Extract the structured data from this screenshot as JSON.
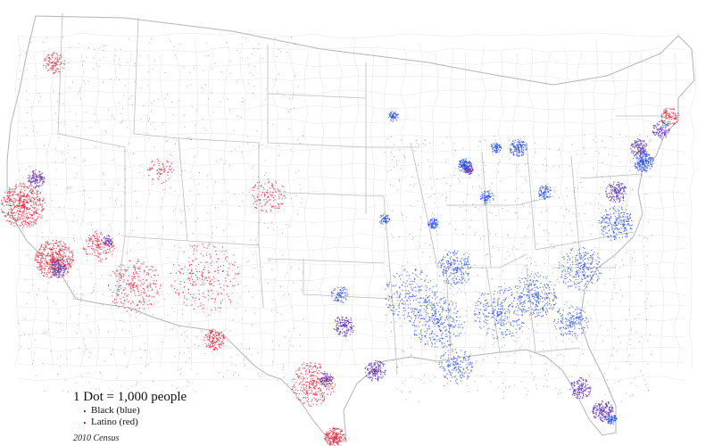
{
  "map": {
    "legend": {
      "title": "1 Dot = 1,000 people",
      "items": [
        {
          "label": "Black (blue)",
          "color": "#2a4fe0"
        },
        {
          "label": "Latino (red)",
          "color": "#e0233a"
        }
      ]
    },
    "note": "2010 Census",
    "colors": {
      "boundary": "#c8c8c8",
      "state_boundary": "#b0b0b0",
      "black": "#2a4fe0",
      "latino": "#e0233a",
      "mixed": "#6a3fb8"
    }
  }
}
